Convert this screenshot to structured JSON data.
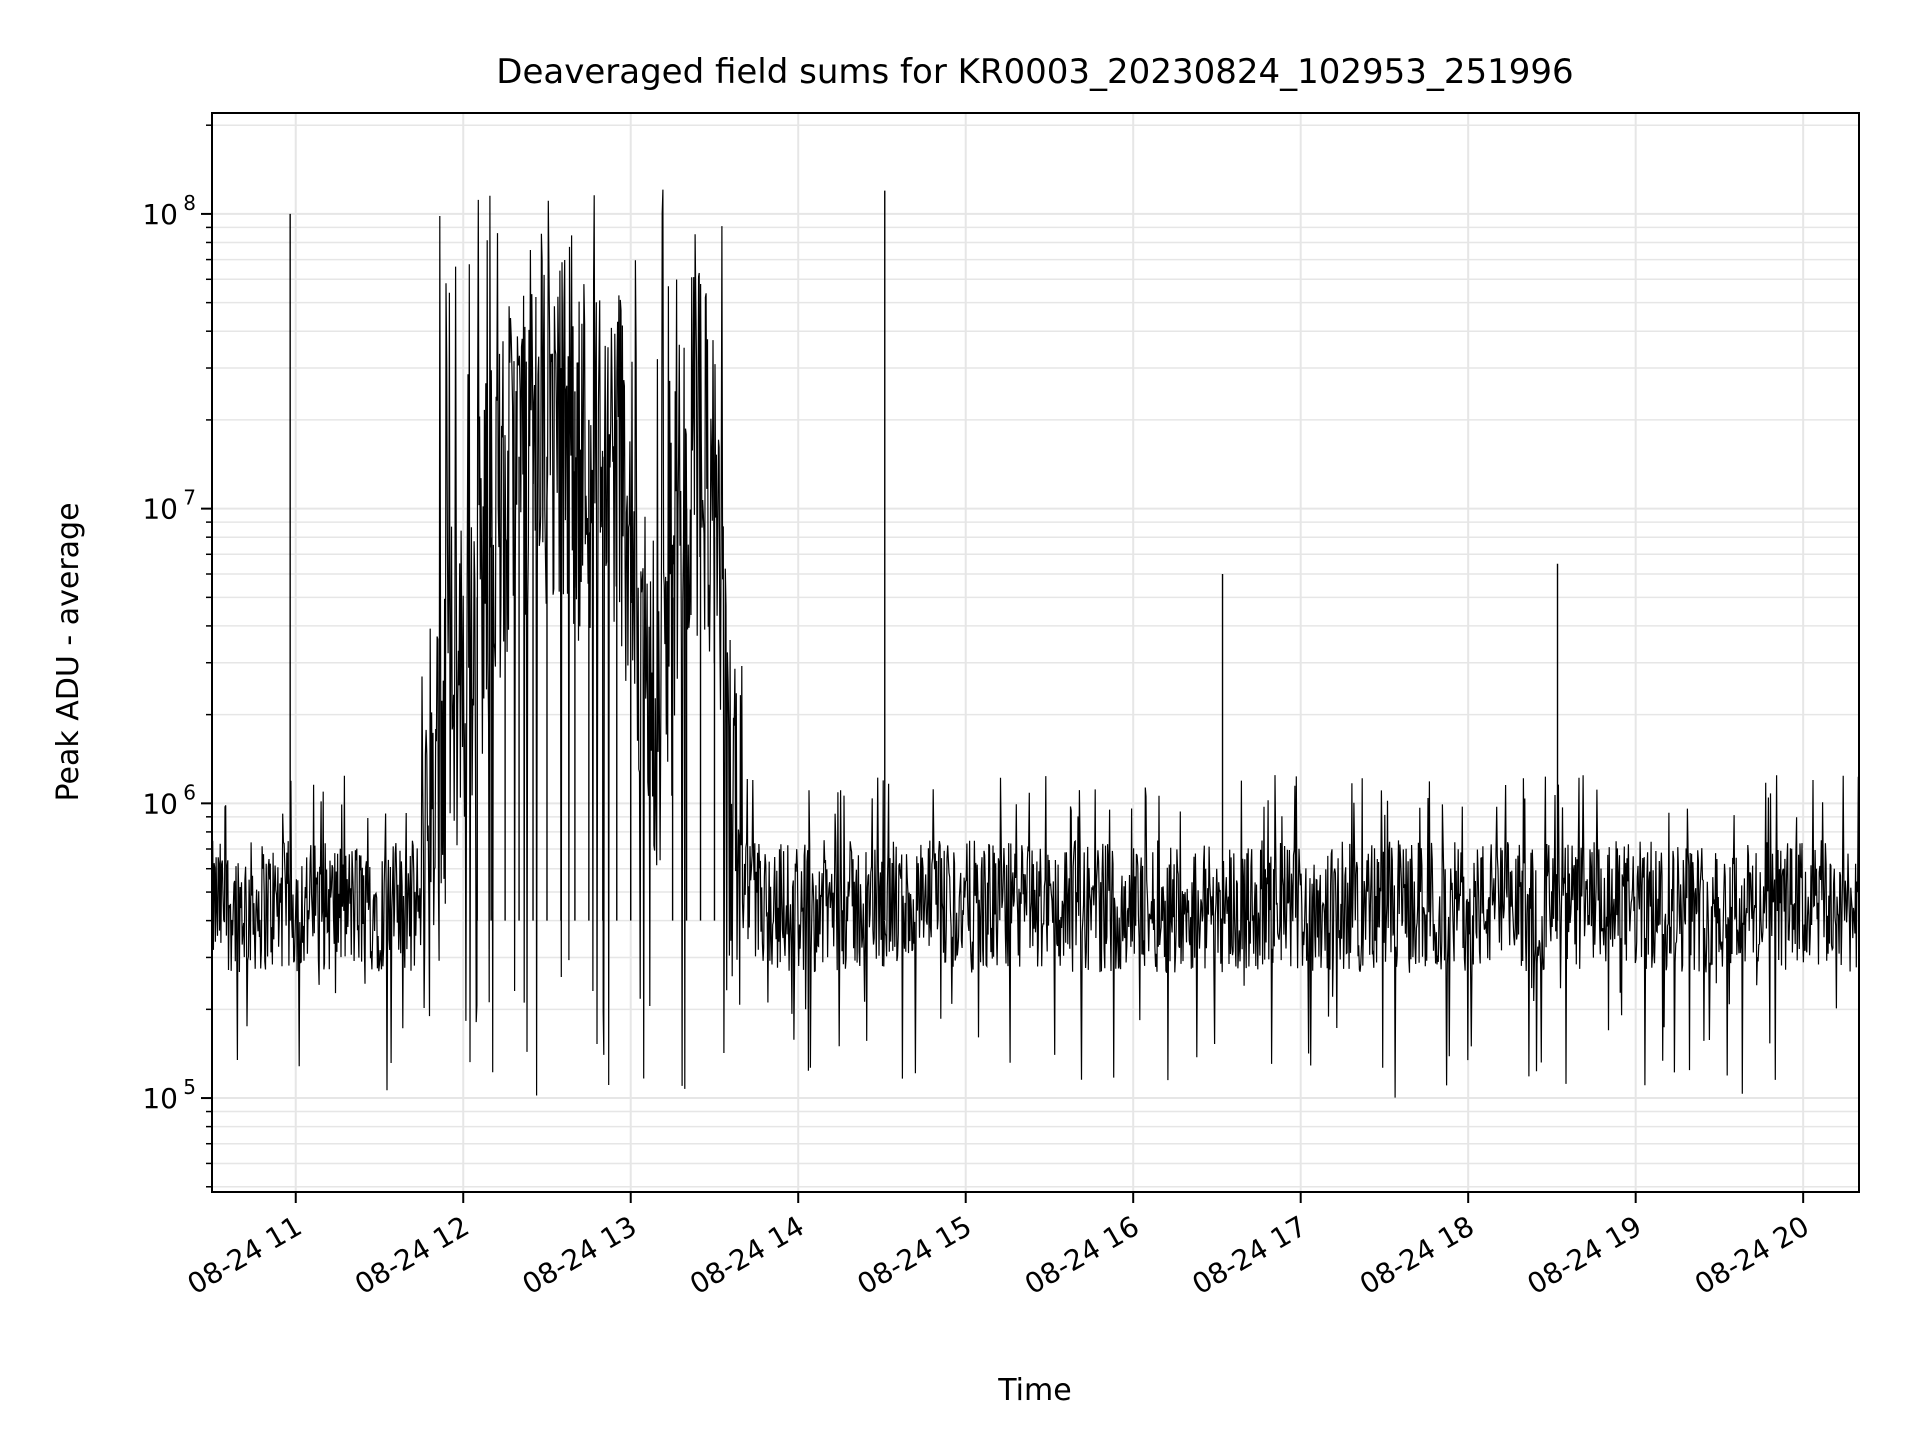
{
  "chart_data": {
    "type": "line",
    "title": "Deaveraged field sums for KR0003_20230824_102953_251996",
    "xlabel": "Time",
    "ylabel": "Peak ADU - average",
    "x_ticks": [
      "08-24 11",
      "08-24 12",
      "08-24 13",
      "08-24 14",
      "08-24 15",
      "08-24 16",
      "08-24 17",
      "08-24 18",
      "08-24 19",
      "08-24 20"
    ],
    "y_ticks": [
      {
        "base": "10",
        "exp": "5",
        "value": 100000
      },
      {
        "base": "10",
        "exp": "6",
        "value": 1000000
      },
      {
        "base": "10",
        "exp": "7",
        "value": 10000000
      },
      {
        "base": "10",
        "exp": "8",
        "value": 100000000
      }
    ],
    "xlim": [
      "2023-08-24 10:30",
      "2023-08-24 20:20"
    ],
    "ylim": [
      48000,
      220000000
    ],
    "yscale": "log",
    "grid": true,
    "line_color": "#000000",
    "grid_color": "#e6e6e6",
    "series": [
      {
        "x": [
          "2023-08-24 10:30",
          "2023-08-24 10:35",
          "2023-08-24 10:40",
          "2023-08-24 10:45",
          "2023-08-24 10:50",
          "2023-08-24 10:55",
          "2023-08-24 10:58",
          "2023-08-24 11:00",
          "2023-08-24 11:05",
          "2023-08-24 11:10",
          "2023-08-24 11:15",
          "2023-08-24 11:20",
          "2023-08-24 11:25",
          "2023-08-24 11:30",
          "2023-08-24 11:35",
          "2023-08-24 11:40",
          "2023-08-24 11:45",
          "2023-08-24 11:50",
          "2023-08-24 11:55",
          "2023-08-24 12:00",
          "2023-08-24 12:05",
          "2023-08-24 12:10",
          "2023-08-24 12:15",
          "2023-08-24 12:20",
          "2023-08-24 12:25",
          "2023-08-24 12:30",
          "2023-08-24 12:35",
          "2023-08-24 12:40",
          "2023-08-24 12:45",
          "2023-08-24 12:50",
          "2023-08-24 12:55",
          "2023-08-24 13:00",
          "2023-08-24 13:05",
          "2023-08-24 13:10",
          "2023-08-24 13:15",
          "2023-08-24 13:20",
          "2023-08-24 13:25",
          "2023-08-24 13:30",
          "2023-08-24 13:35",
          "2023-08-24 13:40",
          "2023-08-24 13:50",
          "2023-08-24 14:00",
          "2023-08-24 14:15",
          "2023-08-24 14:30",
          "2023-08-24 14:31",
          "2023-08-24 14:45",
          "2023-08-24 15:00",
          "2023-08-24 15:15",
          "2023-08-24 15:30",
          "2023-08-24 15:45",
          "2023-08-24 16:00",
          "2023-08-24 16:15",
          "2023-08-24 16:30",
          "2023-08-24 16:32",
          "2023-08-24 16:45",
          "2023-08-24 17:00",
          "2023-08-24 17:15",
          "2023-08-24 17:30",
          "2023-08-24 17:45",
          "2023-08-24 18:00",
          "2023-08-24 18:15",
          "2023-08-24 18:30",
          "2023-08-24 18:32",
          "2023-08-24 18:45",
          "2023-08-24 19:00",
          "2023-08-24 19:15",
          "2023-08-24 19:30",
          "2023-08-24 19:45",
          "2023-08-24 20:00",
          "2023-08-24 20:05",
          "2023-08-24 20:10",
          "2023-08-24 20:15",
          "2023-08-24 20:20"
        ],
        "y": [
          400000,
          300000,
          500000,
          600000,
          500000,
          450000,
          100000000,
          450000,
          500000,
          400000,
          500000,
          550000,
          500000,
          450000,
          550000,
          600000,
          700000,
          1500000,
          2000000,
          3000000,
          5000000,
          8000000,
          10000000,
          15000000,
          20000000,
          15000000,
          30000000,
          25000000,
          20000000,
          15000000,
          20000000,
          8000000,
          3000000,
          2000000,
          5000000,
          10000000,
          40000000,
          8000000,
          1000000,
          700000,
          650000,
          600000,
          550000,
          500000,
          120000000,
          550000,
          600000,
          550000,
          500000,
          550000,
          550000,
          500000,
          600000,
          6000000,
          550000,
          500000,
          450000,
          450000,
          500000,
          480000,
          500000,
          520000,
          6500000,
          500000,
          520000,
          500000,
          520000,
          550000,
          600000,
          550000,
          450000,
          700000,
          750000
        ]
      }
    ]
  }
}
